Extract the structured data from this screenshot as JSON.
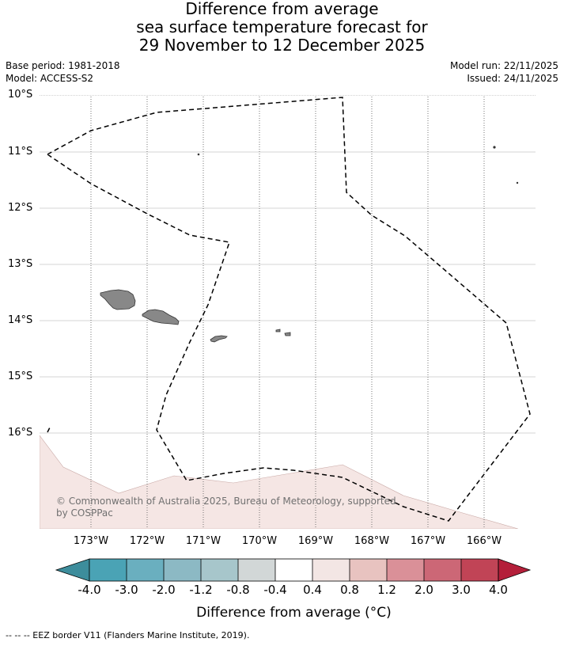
{
  "title": {
    "line1": "Difference from average",
    "line2": "sea surface temperature forecast for",
    "line3": "29 November to 12 December 2025"
  },
  "meta": {
    "base_period": "Base period: 1981-2018",
    "model": "Model: ACCESS-S2",
    "model_run": "Model run: 22/11/2025",
    "issued": "Issued: 24/11/2025"
  },
  "axes": {
    "lat_labels": [
      "10°S",
      "11°S",
      "12°S",
      "13°S",
      "14°S",
      "15°S",
      "16°S"
    ],
    "lon_labels": [
      "173°W",
      "172°W",
      "171°W",
      "170°W",
      "169°W",
      "168°W",
      "167°W",
      "166°W"
    ]
  },
  "copyright": "© Commonwealth of Australia 2025, Bureau of Meteorology, supported by COSPPac",
  "colorbar": {
    "title": "Difference from average (°C)",
    "tick_labels": [
      "-4.0",
      "-3.0",
      "-2.0",
      "-1.2",
      "-0.8",
      "-0.4",
      "0.4",
      "0.8",
      "1.2",
      "2.0",
      "3.0",
      "4.0"
    ],
    "colors": [
      "#3d8d9c",
      "#4aa3b5",
      "#6aafbf",
      "#8cb9c4",
      "#a7c6cb",
      "#d2d7d7",
      "#ffffff",
      "#f3e6e4",
      "#e8c3c0",
      "#da9098",
      "#cc6776",
      "#c14456",
      "#b41f3a"
    ],
    "shading_color": "#f5e6e4",
    "land_color": "#888888"
  },
  "legend": {
    "eez_text": "--  --  -- EEZ border V11 (Flanders Marine Institute, 2019)."
  }
}
